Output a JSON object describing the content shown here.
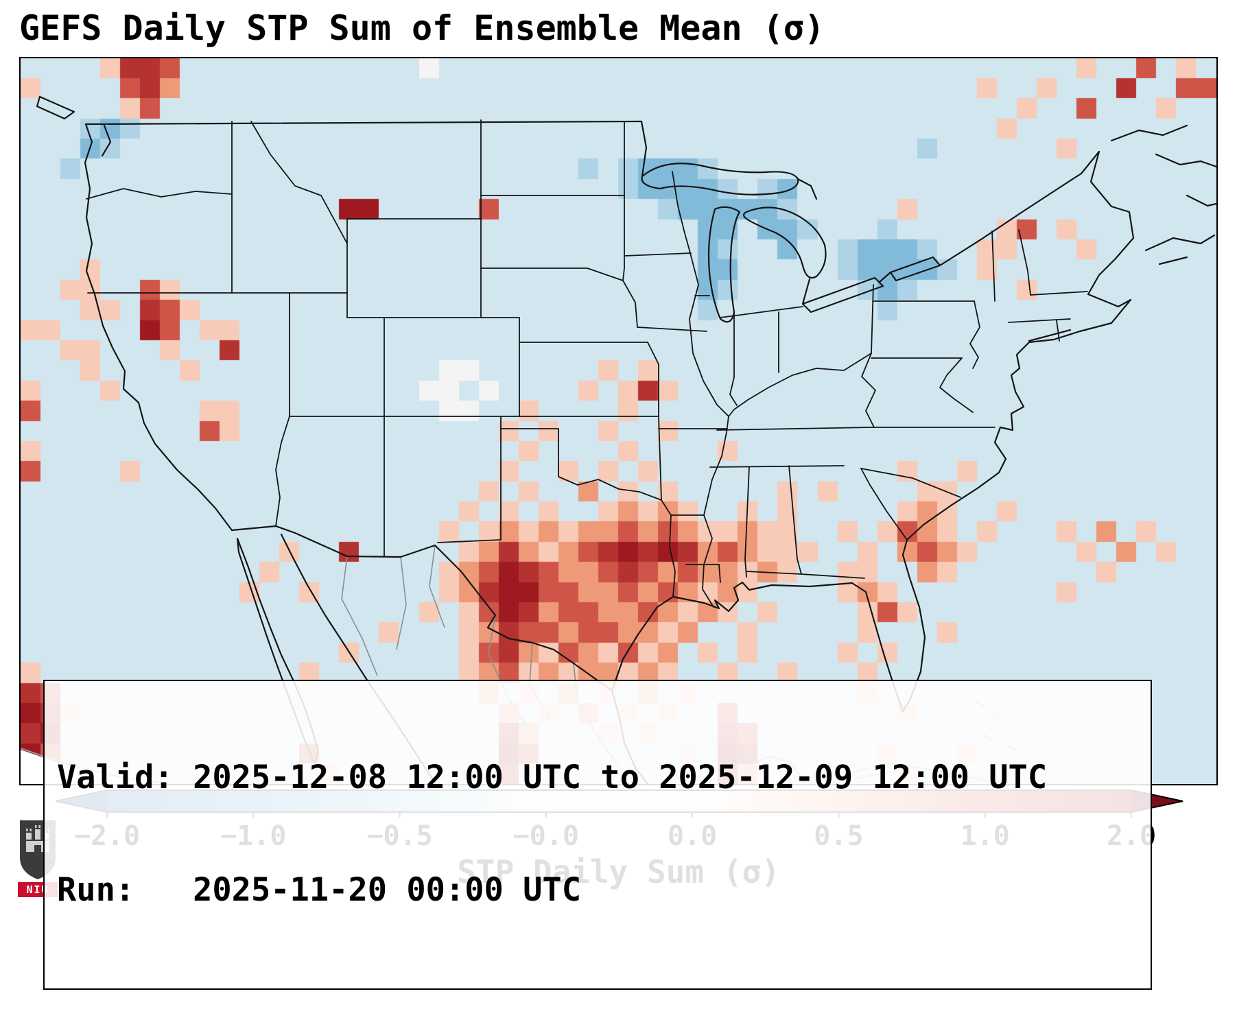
{
  "title": "GEFS Daily STP Sum of Ensemble Mean (σ)",
  "info_box": {
    "valid_line": "Valid: 2025-12-08 12:00 UTC to 2025-12-09 12:00 UTC",
    "run_line": "Run:   2025-11-20 00:00 UTC"
  },
  "colorbar": {
    "label": "STP Daily Sum (σ)",
    "ticks": [
      "−2.0",
      "−1.0",
      "−0.5",
      "−0.0",
      "0.0",
      "0.5",
      "1.0",
      "2.0"
    ],
    "gradient_stops": [
      "#2166ac",
      "#4393c3",
      "#92c5de",
      "#eef4f8",
      "#fbf3ef",
      "#f2a27e",
      "#ca4c41",
      "#9e1a20"
    ],
    "under_color": "#144b86",
    "over_color": "#7a0d19"
  },
  "logo": {
    "text": "NIU",
    "shield_color": "#3b3b3d",
    "band_color": "#c8102e",
    "castle_color": "#d0d0d0"
  },
  "chart_data": {
    "type": "heatmap",
    "title": "GEFS Daily STP Sum of Ensemble Mean (σ)",
    "colorbar_label": "STP Daily Sum (σ)",
    "colorbar_ticks": [
      -2.0,
      -1.0,
      -0.5,
      -0.0,
      0.0,
      0.5,
      1.0,
      2.0
    ],
    "value_range": [
      -2.0,
      2.0
    ],
    "units": "sigma (σ)",
    "background_value": -0.15,
    "cols": 60,
    "rows": 36,
    "value_key": {
      ".": -0.15,
      "c": -0.35,
      "b": -0.6,
      "B": -1.0,
      "w": 0.0,
      "o": 0.25,
      "O": 0.55,
      "r": 0.95,
      "R": 1.5,
      "D": 2.0
    },
    "rows_rle": [
      "4.o2Rr12.w32.o2.r.o.",
      "o4.rRO40.o2.o3.R2.2r",
      "5.or43.o2.r3.o2.",
      "3.cbc43.o10.",
      "3.bc40.c6.o7.",
      "2.c25.c.c3bc25.",
      "30.c4bc.cb21.",
      "16.2D5.r8.c5bc5.o15.",
      "34.2b.2bc3.c5.or.o7.",
      "34.bc2.b2.c3bc2.2o3.o6.",
      "3.o30.2b5.c4bc.o11.",
      "2.2o2.ro26.bc6.cbc5.o9.",
      "3.2o.Rro25.c8.c16.",
      "2o4.Dr.2o49.",
      "2.2o3.o2.R49.",
      "3.o4.o12.2w6.o.o28.",
      "o3.o15.2w.w4.o.oRo27.",
      "r8.2o10.2w2.o4.o29.",
      "9.ro13.o.o2.o2.o27.",
      "o24.o4.o4.o24.",
      "r4.o18.o2.o.o.o12.o2.o12.",
      "23.o.o2.O.o.o5.o.o4.2o13.",
      "22.o.o.o2.oOoOo2.o.o5.oOo2.o10.",
      "21.o.oOoOo2OrOrO2oO2o2.o.orOo.o3.o.O.o3.",
      "13.o2.R5.oOROoOrRDRDROrO3o2.o.OrOo5.o.O.o2.",
      "12.o8.oOrDRr2OrRrOr2OoOo2.2o2.Oo7.o5.",
      "11.o2.o6.oOR2D2r2OrOrOoOo4.oOo8.o7.",
      "20.o.orDRO2r2OrOoOo.o4.oro15.",
      "18.o3.oOR2rO2r2OoO2.o5.o3.o13.",
      "16.o5.orROorOoroO.o.o4.o.o16.",
      "o13.o7.oOroOo2OoOo2.o2.o3.o17.",
      "Rr21.O.o.O.o.O.o8.o17.",
      "DRo21.O.o.O.o.o2.r8.o15.",
      "RD22.RO3.o.o3.Rr23.",
      "Dr12.r9.Dr7.o.DR6.o3.o12.",
      "RO13.o8.R10.RO7.o15."
    ],
    "notable_features": [
      {
        "area": "Texas, western Gulf Coast and Louisiana coast",
        "anomaly": "strong positive",
        "approx_max_sigma": 2.0
      },
      {
        "area": "Great Lakes, upstate New York and New England",
        "anomaly": "negative",
        "approx_min_sigma": -1.0
      },
      {
        "area": "Southeast US and adjacent Atlantic waters",
        "anomaly": "weak positive",
        "approx_sigma": 0.3
      },
      {
        "area": "Most of CONUS background",
        "anomaly": "weak negative",
        "approx_sigma": -0.15
      },
      {
        "area": "Isolated cells over Nevada, Montana, North Dakota, Missouri",
        "anomaly": "isolated strong positive speckles",
        "approx_sigma": 1.5
      }
    ]
  }
}
